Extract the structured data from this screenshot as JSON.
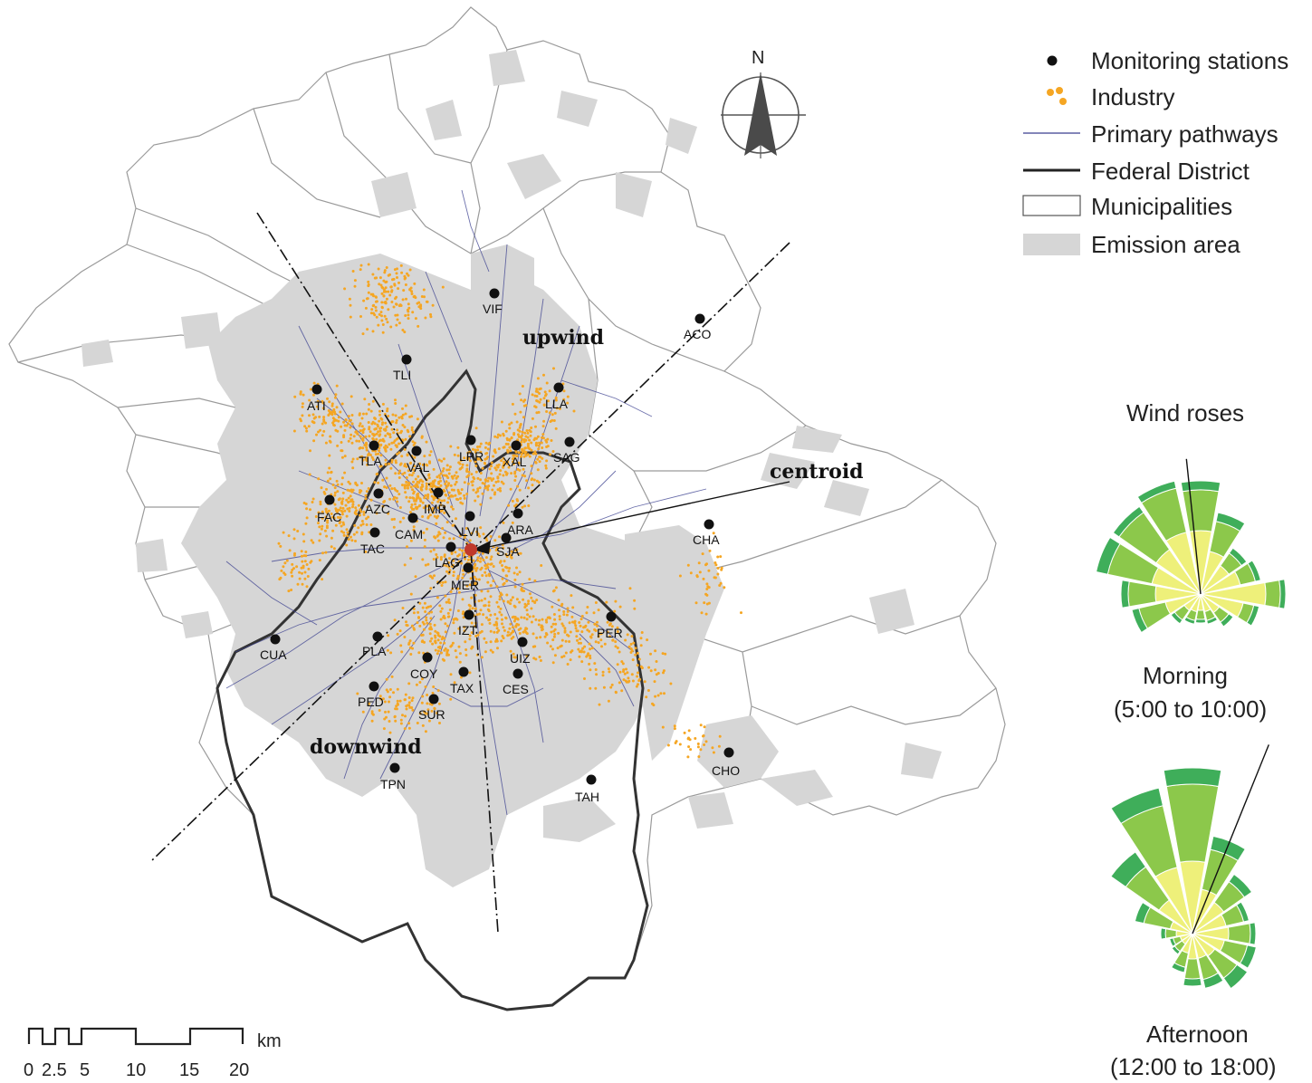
{
  "legend": {
    "items": [
      {
        "label": "Monitoring stations",
        "symbol": "dot"
      },
      {
        "label": "Industry",
        "symbol": "orange-dots"
      },
      {
        "label": "Primary pathways",
        "symbol": "thin-blue-line"
      },
      {
        "label": "Federal District",
        "symbol": "thick-black-line"
      },
      {
        "label": "Municipalities",
        "symbol": "outline-box"
      },
      {
        "label": "Emission area",
        "symbol": "grey-box"
      }
    ]
  },
  "north_label": "N",
  "map_labels": {
    "upwind": "upwind",
    "downwind": "downwind",
    "centroid": "centroid"
  },
  "stations": [
    {
      "code": "VIF"
    },
    {
      "code": "ACO"
    },
    {
      "code": "TLI"
    },
    {
      "code": "ATI"
    },
    {
      "code": "LLA"
    },
    {
      "code": "TLA"
    },
    {
      "code": "VAL"
    },
    {
      "code": "LPR"
    },
    {
      "code": "XAL"
    },
    {
      "code": "SAG"
    },
    {
      "code": "FAC"
    },
    {
      "code": "AZC"
    },
    {
      "code": "IMP"
    },
    {
      "code": "CAM"
    },
    {
      "code": "LVI"
    },
    {
      "code": "ARA"
    },
    {
      "code": "TAC"
    },
    {
      "code": "SJA"
    },
    {
      "code": "LAG"
    },
    {
      "code": "CHA"
    },
    {
      "code": "MER"
    },
    {
      "code": "IZT"
    },
    {
      "code": "PER"
    },
    {
      "code": "CUA"
    },
    {
      "code": "PLA"
    },
    {
      "code": "UIZ"
    },
    {
      "code": "COY"
    },
    {
      "code": "TAX"
    },
    {
      "code": "CES"
    },
    {
      "code": "PED"
    },
    {
      "code": "SUR"
    },
    {
      "code": "CHO"
    },
    {
      "code": "TPN"
    },
    {
      "code": "TAH"
    }
  ],
  "wind_roses": {
    "title": "Wind roses",
    "morning": {
      "label": "Morning",
      "time": "(5:00 to 10:00)"
    },
    "afternoon": {
      "label": "Afternoon",
      "time": "(12:00 to 18:00)"
    }
  },
  "scale_bar": {
    "unit": "km",
    "ticks": [
      "0",
      "2.5",
      "5",
      "10",
      "15",
      "20"
    ]
  },
  "colors": {
    "industry": "#f5a623",
    "station": "#111111",
    "emission_area": "#d6d6d6",
    "pathway": "#3a3f8f",
    "federal_district": "#333333",
    "municipality": "#9a9a9a",
    "centroid": "#c0392b",
    "rose_light": "#eef07a",
    "rose_mid": "#8cc84b",
    "rose_dark": "#3fae5a"
  }
}
